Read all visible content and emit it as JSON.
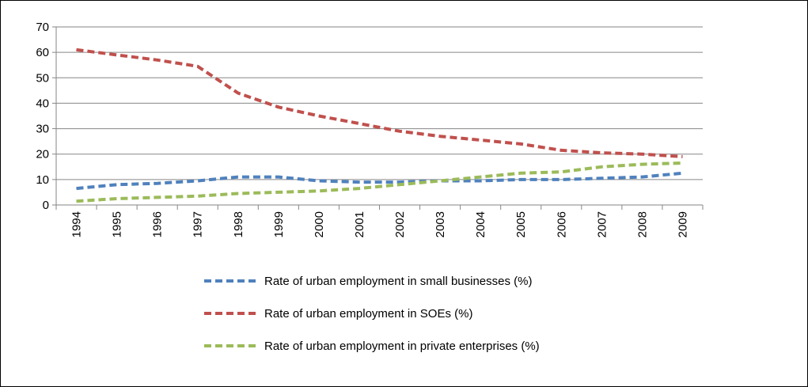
{
  "chart_data": {
    "type": "line",
    "title": "",
    "xlabel": "",
    "ylabel": "",
    "categories": [
      "1994",
      "1995",
      "1996",
      "1997",
      "1998",
      "1999",
      "2000",
      "2001",
      "2002",
      "2003",
      "2004",
      "2005",
      "2006",
      "2007",
      "2008",
      "2009"
    ],
    "ylim": [
      0,
      70
    ],
    "yticks": [
      0,
      10,
      20,
      30,
      40,
      50,
      60,
      70
    ],
    "grid": true,
    "legend_position": "bottom",
    "series": [
      {
        "name": "Rate of urban employment in small businesses (%)",
        "color": "#4F81BD",
        "values": [
          6.5,
          8,
          8.5,
          9.5,
          11,
          11,
          9.5,
          9,
          9,
          9.5,
          9.5,
          10,
          10,
          10.5,
          11,
          12.5
        ]
      },
      {
        "name": "Rate of urban employment in SOEs  (%)",
        "color": "#C0504D",
        "values": [
          61,
          59,
          57,
          54.5,
          44,
          38.5,
          35,
          32,
          29,
          27,
          25.5,
          24,
          21.5,
          20.5,
          20,
          19
        ]
      },
      {
        "name": "Rate of urban employment in private enterprises (%)",
        "color": "#9BBB59",
        "values": [
          1.5,
          2.5,
          3,
          3.5,
          4.5,
          5,
          5.5,
          6.5,
          8,
          9.5,
          11,
          12.5,
          13,
          15,
          16,
          16.5
        ]
      }
    ]
  }
}
